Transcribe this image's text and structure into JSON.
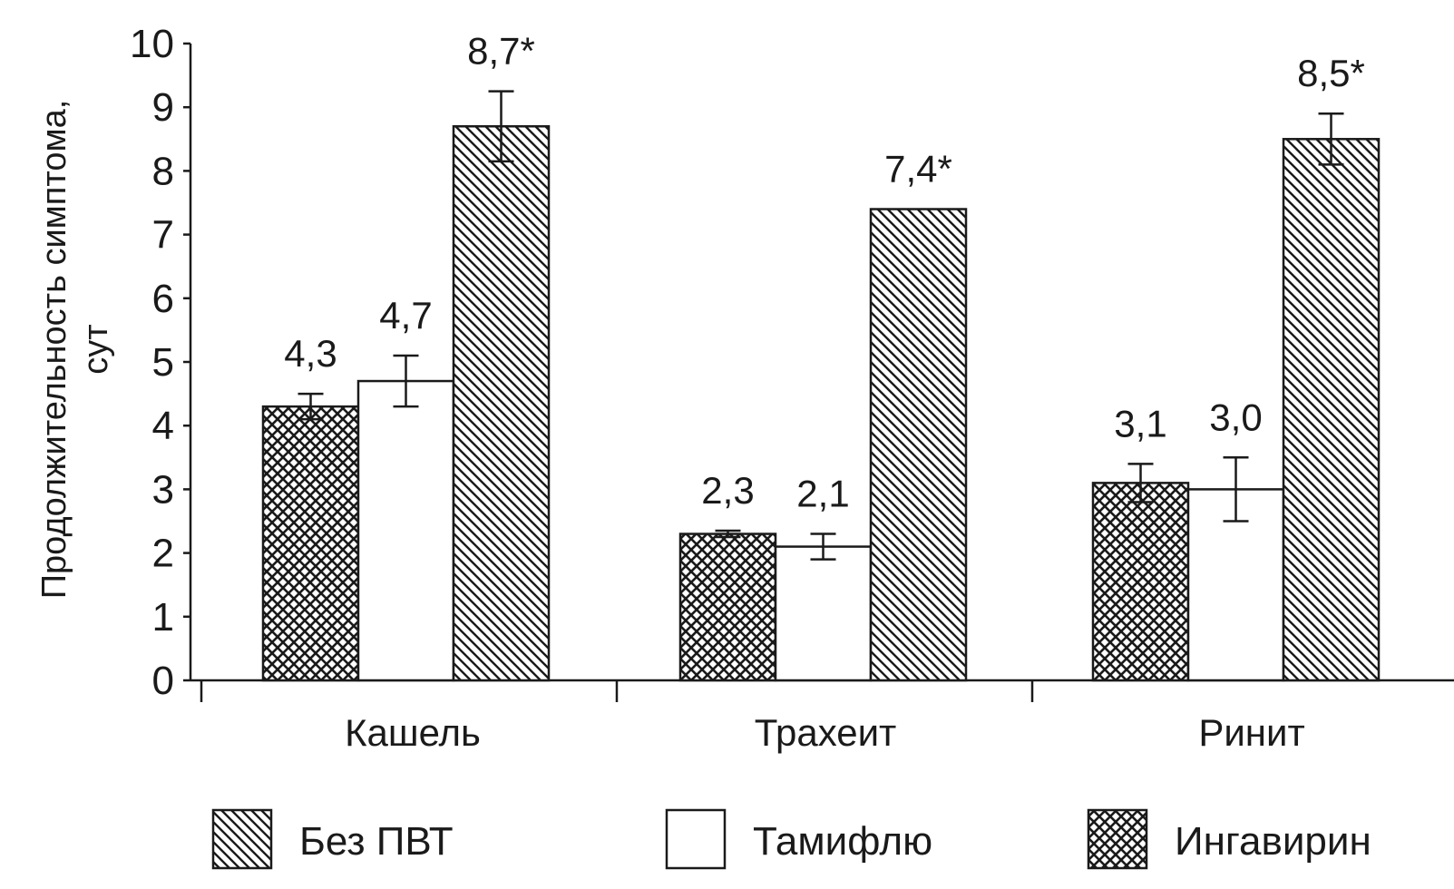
{
  "chart_data": {
    "type": "bar",
    "ylabel_line1": "Продолжительность симптома,",
    "ylabel_line2": "сут",
    "ylim": [
      0,
      10
    ],
    "yticks": [
      "0",
      "1",
      "2",
      "3",
      "4",
      "5",
      "6",
      "7",
      "8",
      "9",
      "10"
    ],
    "categories": [
      "Кашель",
      "Трахеит",
      "Ринит"
    ],
    "bar_order": [
      "Ингавирин",
      "Тамифлю",
      "Без ПВТ"
    ],
    "series": [
      {
        "name": "Без ПВТ",
        "pattern": "diagonal",
        "values": [
          8.7,
          7.4,
          8.5
        ],
        "labels": [
          "8,7*",
          "7,4*",
          "8,5*"
        ],
        "errors": [
          0.55,
          0,
          0.4
        ]
      },
      {
        "name": "Тамифлю",
        "pattern": "none",
        "values": [
          4.7,
          2.1,
          3.0
        ],
        "labels": [
          "4,7",
          "2,1",
          "3,0"
        ],
        "errors": [
          0.4,
          0.2,
          0.5
        ]
      },
      {
        "name": "Ингавирин",
        "pattern": "crosshatch",
        "values": [
          4.3,
          2.3,
          3.1
        ],
        "labels": [
          "4,3",
          "2,3",
          "3,1"
        ],
        "errors": [
          0.2,
          0.05,
          0.3
        ]
      }
    ],
    "legend": {
      "position": "bottom",
      "items": [
        "Без ПВТ",
        "Тамифлю",
        "Ингавирин"
      ]
    },
    "grid": false,
    "colors": {
      "ink": "#1a1a1a",
      "background": "#ffffff"
    }
  }
}
